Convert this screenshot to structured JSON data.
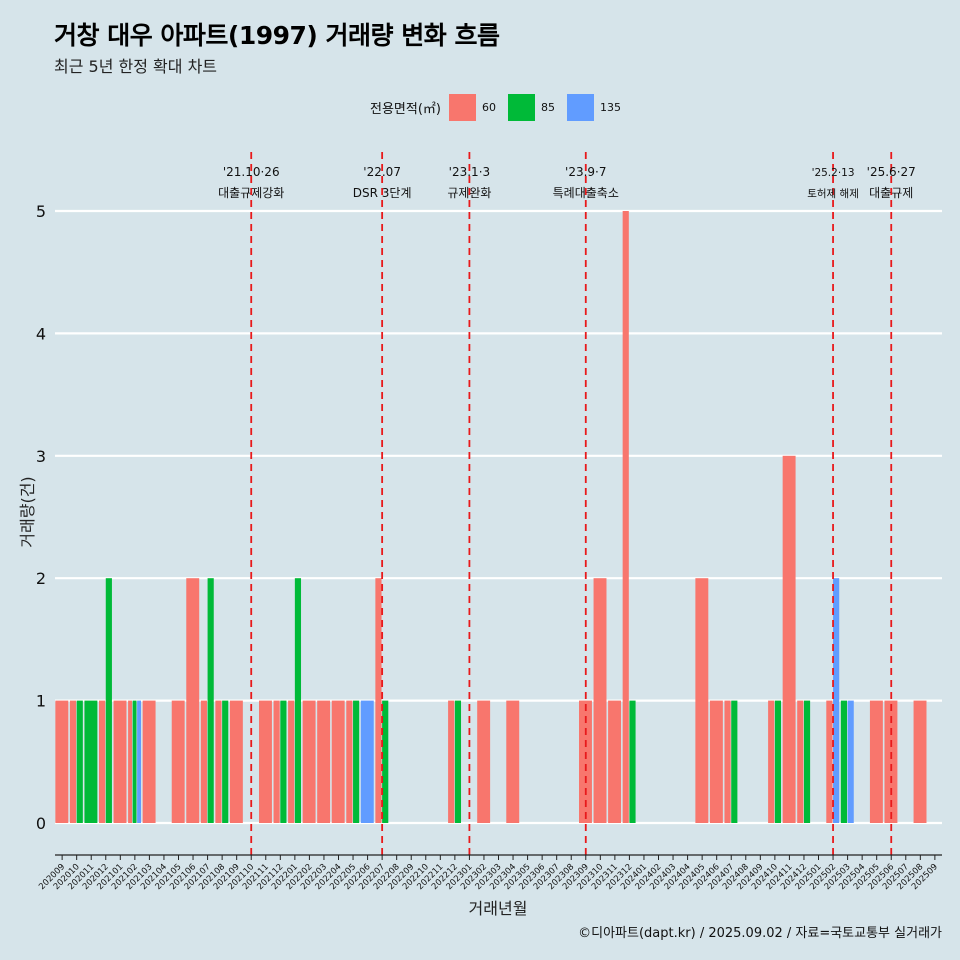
{
  "title": "거창 대우 아파트(1997) 거래량 변화 흐름",
  "subtitle": "최근 5년 한정 확대 차트",
  "caption": "©디아파트(dapt.kr) / 2025.09.02 / 자료=국토교통부 실거래가",
  "legend": {
    "title": "전용면적(㎡)",
    "items": [
      {
        "label": "60",
        "color": "#f8766d"
      },
      {
        "label": "85",
        "color": "#00ba38"
      },
      {
        "label": "135",
        "color": "#619cff"
      }
    ]
  },
  "chart_data": {
    "type": "bar",
    "xlabel": "거래년월",
    "ylabel": "거래량(건)",
    "ylim": [
      0,
      5
    ],
    "yticks": [
      0,
      1,
      2,
      3,
      4,
      5
    ],
    "categories": [
      "202009",
      "202010",
      "202011",
      "202012",
      "202101",
      "202102",
      "202103",
      "202104",
      "202105",
      "202106",
      "202107",
      "202108",
      "202109",
      "202110",
      "202111",
      "202112",
      "202201",
      "202202",
      "202203",
      "202204",
      "202205",
      "202206",
      "202207",
      "202208",
      "202209",
      "202210",
      "202211",
      "202212",
      "202301",
      "202302",
      "202303",
      "202304",
      "202305",
      "202306",
      "202307",
      "202308",
      "202309",
      "202310",
      "202311",
      "202312",
      "202401",
      "202402",
      "202403",
      "202404",
      "202405",
      "202406",
      "202407",
      "202408",
      "202409",
      "202410",
      "202411",
      "202412",
      "202501",
      "202502",
      "202503",
      "202504",
      "202505",
      "202506",
      "202507",
      "202508",
      "202509"
    ],
    "series": [
      {
        "name": "60",
        "color": "#f8766d",
        "values": [
          1,
          1,
          0,
          1,
          1,
          1,
          1,
          0,
          1,
          2,
          1,
          1,
          1,
          0,
          1,
          1,
          1,
          1,
          1,
          1,
          1,
          0,
          2,
          0,
          0,
          0,
          0,
          1,
          0,
          1,
          0,
          1,
          0,
          0,
          0,
          0,
          1,
          2,
          1,
          5,
          0,
          0,
          0,
          0,
          2,
          1,
          1,
          0,
          0,
          1,
          3,
          1,
          0,
          1,
          0,
          0,
          1,
          1,
          0,
          1,
          0
        ]
      },
      {
        "name": "85",
        "color": "#00ba38",
        "values": [
          0,
          1,
          1,
          2,
          0,
          1,
          0,
          0,
          0,
          0,
          2,
          1,
          0,
          0,
          0,
          1,
          2,
          0,
          0,
          0,
          1,
          0,
          1,
          0,
          0,
          0,
          0,
          1,
          0,
          0,
          0,
          0,
          0,
          0,
          0,
          0,
          0,
          0,
          0,
          1,
          0,
          0,
          0,
          0,
          0,
          0,
          1,
          0,
          0,
          1,
          0,
          1,
          0,
          0,
          1,
          0,
          0,
          0,
          0,
          0,
          0
        ]
      },
      {
        "name": "135",
        "color": "#619cff",
        "values": [
          0,
          0,
          0,
          0,
          0,
          1,
          0,
          0,
          0,
          0,
          0,
          0,
          0,
          0,
          0,
          0,
          0,
          0,
          0,
          0,
          0,
          1,
          0,
          0,
          0,
          0,
          0,
          0,
          0,
          0,
          0,
          0,
          0,
          0,
          0,
          0,
          0,
          0,
          0,
          0,
          0,
          0,
          0,
          0,
          0,
          0,
          0,
          0,
          0,
          0,
          0,
          0,
          0,
          2,
          1,
          0,
          0,
          0,
          0,
          0,
          0
        ]
      }
    ],
    "events": [
      {
        "month": "202110",
        "date": "'21.10·26",
        "label": "대출규제강화"
      },
      {
        "month": "202207",
        "date": "'22.07",
        "label": "DSR 3단계"
      },
      {
        "month": "202301",
        "date": "'23.1·3",
        "label": "규제완화"
      },
      {
        "month": "202309",
        "date": "'23.9·7",
        "label": "특례대출축소"
      },
      {
        "month": "202502",
        "date": "'25.2·13",
        "label": "토허제 해제"
      },
      {
        "month": "202506",
        "date": "'25.6·27",
        "label": "대출규제"
      }
    ],
    "grid": true,
    "legend_position": "top"
  }
}
